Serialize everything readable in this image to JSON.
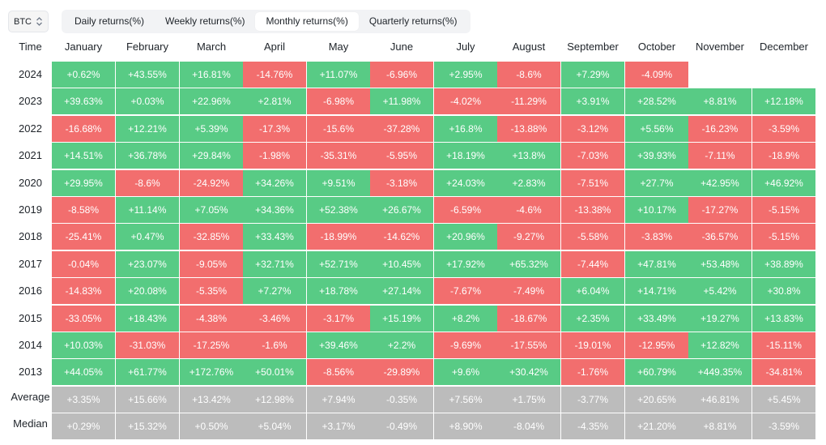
{
  "toolbar": {
    "asset": "BTC",
    "tabs": [
      {
        "label": "Daily returns(%)",
        "active": false
      },
      {
        "label": "Weekly returns(%)",
        "active": false
      },
      {
        "label": "Monthly returns(%)",
        "active": true
      },
      {
        "label": "Quarterly returns(%)",
        "active": false
      }
    ]
  },
  "colors": {
    "positive": "#58cb85",
    "negative": "#f26e6e",
    "neutral": "#bcbcbc"
  },
  "table": {
    "corner_label": "Time",
    "months": [
      "January",
      "February",
      "March",
      "April",
      "May",
      "June",
      "July",
      "August",
      "September",
      "October",
      "November",
      "December"
    ],
    "rows": [
      {
        "label": "2024",
        "cells": [
          "+0.62%",
          "+43.55%",
          "+16.81%",
          "-14.76%",
          "+11.07%",
          "-6.96%",
          "+2.95%",
          "-8.6%",
          "+7.29%",
          "-4.09%",
          null,
          null
        ]
      },
      {
        "label": "2023",
        "cells": [
          "+39.63%",
          "+0.03%",
          "+22.96%",
          "+2.81%",
          "-6.98%",
          "+11.98%",
          "-4.02%",
          "-11.29%",
          "+3.91%",
          "+28.52%",
          "+8.81%",
          "+12.18%"
        ]
      },
      {
        "label": "2022",
        "cells": [
          "-16.68%",
          "+12.21%",
          "+5.39%",
          "-17.3%",
          "-15.6%",
          "-37.28%",
          "+16.8%",
          "-13.88%",
          "-3.12%",
          "+5.56%",
          "-16.23%",
          "-3.59%"
        ]
      },
      {
        "label": "2021",
        "cells": [
          "+14.51%",
          "+36.78%",
          "+29.84%",
          "-1.98%",
          "-35.31%",
          "-5.95%",
          "+18.19%",
          "+13.8%",
          "-7.03%",
          "+39.93%",
          "-7.11%",
          "-18.9%"
        ]
      },
      {
        "label": "2020",
        "cells": [
          "+29.95%",
          "-8.6%",
          "-24.92%",
          "+34.26%",
          "+9.51%",
          "-3.18%",
          "+24.03%",
          "+2.83%",
          "-7.51%",
          "+27.7%",
          "+42.95%",
          "+46.92%"
        ]
      },
      {
        "label": "2019",
        "cells": [
          "-8.58%",
          "+11.14%",
          "+7.05%",
          "+34.36%",
          "+52.38%",
          "+26.67%",
          "-6.59%",
          "-4.6%",
          "-13.38%",
          "+10.17%",
          "-17.27%",
          "-5.15%"
        ]
      },
      {
        "label": "2018",
        "cells": [
          "-25.41%",
          "+0.47%",
          "-32.85%",
          "+33.43%",
          "-18.99%",
          "-14.62%",
          "+20.96%",
          "-9.27%",
          "-5.58%",
          "-3.83%",
          "-36.57%",
          "-5.15%"
        ]
      },
      {
        "label": "2017",
        "cells": [
          "-0.04%",
          "+23.07%",
          "-9.05%",
          "+32.71%",
          "+52.71%",
          "+10.45%",
          "+17.92%",
          "+65.32%",
          "-7.44%",
          "+47.81%",
          "+53.48%",
          "+38.89%"
        ]
      },
      {
        "label": "2016",
        "cells": [
          "-14.83%",
          "+20.08%",
          "-5.35%",
          "+7.27%",
          "+18.78%",
          "+27.14%",
          "-7.67%",
          "-7.49%",
          "+6.04%",
          "+14.71%",
          "+5.42%",
          "+30.8%"
        ]
      },
      {
        "label": "2015",
        "cells": [
          "-33.05%",
          "+18.43%",
          "-4.38%",
          "-3.46%",
          "-3.17%",
          "+15.19%",
          "+8.2%",
          "-18.67%",
          "+2.35%",
          "+33.49%",
          "+19.27%",
          "+13.83%"
        ]
      },
      {
        "label": "2014",
        "cells": [
          "+10.03%",
          "-31.03%",
          "-17.25%",
          "-1.6%",
          "+39.46%",
          "+2.2%",
          "-9.69%",
          "-17.55%",
          "-19.01%",
          "-12.95%",
          "+12.82%",
          "-15.11%"
        ]
      },
      {
        "label": "2013",
        "cells": [
          "+44.05%",
          "+61.77%",
          "+172.76%",
          "+50.01%",
          "-8.56%",
          "-29.89%",
          "+9.6%",
          "+30.42%",
          "-1.76%",
          "+60.79%",
          "+449.35%",
          "-34.81%"
        ]
      }
    ],
    "summary_rows": [
      {
        "label": "Average",
        "cells": [
          "+3.35%",
          "+15.66%",
          "+13.42%",
          "+12.98%",
          "+7.94%",
          "-0.35%",
          "+7.56%",
          "+1.75%",
          "-3.77%",
          "+20.65%",
          "+46.81%",
          "+5.45%"
        ]
      },
      {
        "label": "Median",
        "cells": [
          "+0.29%",
          "+15.32%",
          "+0.50%",
          "+5.04%",
          "+3.17%",
          "-0.49%",
          "+8.90%",
          "-8.04%",
          "-4.35%",
          "+21.20%",
          "+8.81%",
          "-3.59%"
        ]
      }
    ]
  }
}
